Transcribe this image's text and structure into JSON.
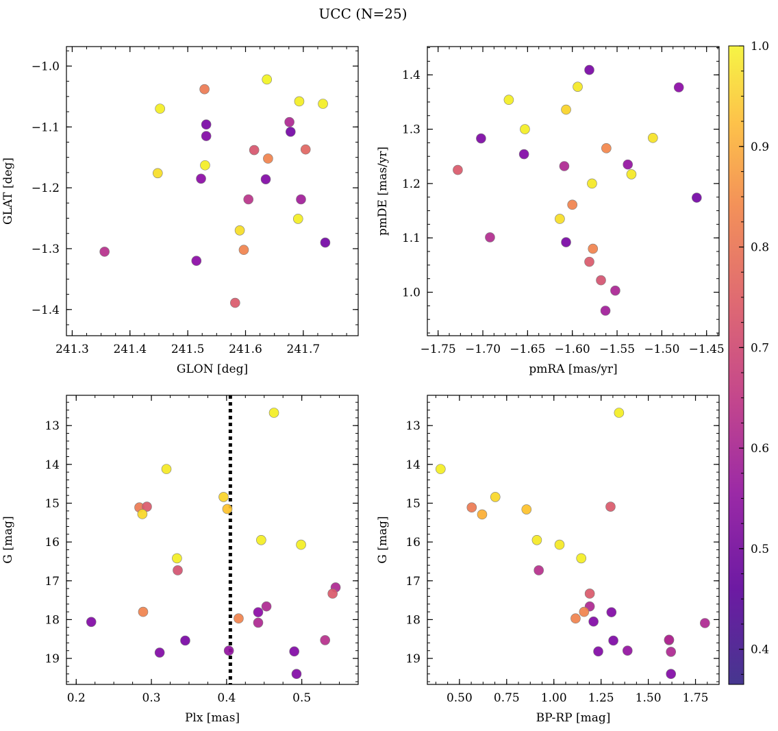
{
  "figure": {
    "title": "UCC (N=25)"
  },
  "colorbar": {
    "min": 0.365,
    "max": 1.0,
    "ticks": [
      0.4,
      0.5,
      0.6,
      0.7,
      0.8,
      0.9,
      1.0
    ],
    "tick_labels": [
      "0.4",
      "0.5",
      "0.6",
      "0.7",
      "0.8",
      "0.9",
      "1.0"
    ],
    "colormap": "plasma"
  },
  "chart_data": [
    {
      "type": "scatter",
      "id": "panel-galactic",
      "xlabel": "GLON [deg]",
      "ylabel": "GLAT [deg]",
      "xlim": [
        241.29,
        241.795
      ],
      "ylim": [
        -1.443,
        -0.968
      ],
      "xticks": [
        241.3,
        241.4,
        241.5,
        241.6,
        241.7
      ],
      "xtick_labels": [
        "241.3",
        "241.4",
        "241.5",
        "241.6",
        "241.7"
      ],
      "yticks": [
        -1.0,
        -1.1,
        -1.2,
        -1.3,
        -1.4
      ],
      "ytick_labels": [
        "−1.0",
        "−1.1",
        "−1.2",
        "−1.3",
        "−1.4"
      ],
      "x": [
        241.637,
        241.529,
        241.452,
        241.693,
        241.734,
        241.532,
        241.676,
        241.678,
        241.532,
        241.615,
        241.704,
        241.639,
        241.53,
        241.448,
        241.523,
        241.635,
        241.605,
        241.696,
        241.691,
        241.59,
        241.597,
        241.738,
        241.356,
        241.515,
        241.582
      ],
      "y": [
        -1.022,
        -1.038,
        -1.07,
        -1.058,
        -1.062,
        -1.096,
        -1.092,
        -1.108,
        -1.115,
        -1.138,
        -1.137,
        -1.152,
        -1.163,
        -1.176,
        -1.185,
        -1.186,
        -1.219,
        -1.219,
        -1.251,
        -1.27,
        -1.302,
        -1.29,
        -1.305,
        -1.32,
        -1.389
      ],
      "c": [
        0.99,
        0.74,
        0.98,
        0.98,
        0.98,
        0.41,
        0.53,
        0.4,
        0.43,
        0.65,
        0.69,
        0.76,
        0.98,
        0.95,
        0.45,
        0.43,
        0.56,
        0.5,
        0.98,
        0.95,
        0.76,
        0.4,
        0.55,
        0.45,
        0.66
      ]
    },
    {
      "type": "scatter",
      "id": "panel-pm",
      "xlabel": "pmRA [mas/yr]",
      "ylabel": "pmDE [mas/yr]",
      "xlim": [
        -1.762,
        -1.436
      ],
      "ylim": [
        0.92,
        1.452
      ],
      "xticks": [
        -1.75,
        -1.7,
        -1.65,
        -1.6,
        -1.55,
        -1.5,
        -1.45
      ],
      "xtick_labels": [
        "−1.75",
        "−1.70",
        "−1.65",
        "−1.60",
        "−1.55",
        "−1.50",
        "−1.45"
      ],
      "yticks": [
        1.0,
        1.1,
        1.2,
        1.3,
        1.4
      ],
      "ytick_labels": [
        "1.0",
        "1.1",
        "1.2",
        "1.3",
        "1.4"
      ],
      "x": [
        -1.581,
        -1.594,
        -1.481,
        -1.671,
        -1.607,
        -1.653,
        -1.702,
        -1.51,
        -1.562,
        -1.654,
        -1.538,
        -1.609,
        -1.728,
        -1.534,
        -1.578,
        -1.461,
        -1.6,
        -1.614,
        -1.692,
        -1.607,
        -1.577,
        -1.581,
        -1.568,
        -1.552,
        -1.563
      ],
      "y": [
        1.409,
        1.378,
        1.377,
        1.354,
        1.336,
        1.3,
        1.283,
        1.284,
        1.265,
        1.254,
        1.235,
        1.232,
        1.225,
        1.217,
        1.2,
        1.174,
        1.161,
        1.135,
        1.101,
        1.092,
        1.08,
        1.056,
        1.022,
        1.003,
        0.966
      ],
      "c": [
        0.41,
        0.97,
        0.45,
        0.98,
        0.93,
        0.98,
        0.42,
        0.96,
        0.77,
        0.43,
        0.47,
        0.53,
        0.66,
        0.97,
        0.97,
        0.4,
        0.76,
        0.95,
        0.54,
        0.41,
        0.76,
        0.66,
        0.64,
        0.52,
        0.5
      ]
    },
    {
      "type": "scatter",
      "id": "panel-plx",
      "xlabel": "Plx [mas]",
      "ylabel": "G [mag]",
      "xlim": [
        0.187,
        0.575
      ],
      "ylim": [
        19.67,
        12.22
      ],
      "xticks": [
        0.2,
        0.3,
        0.4,
        0.5
      ],
      "xtick_labels": [
        "0.2",
        "0.3",
        "0.4",
        "0.5"
      ],
      "yticks": [
        13,
        14,
        15,
        16,
        17,
        18,
        19
      ],
      "ytick_labels": [
        "13",
        "14",
        "15",
        "16",
        "17",
        "18",
        "19"
      ],
      "vline": 0.405,
      "x": [
        0.463,
        0.32,
        0.396,
        0.284,
        0.294,
        0.288,
        0.401,
        0.446,
        0.499,
        0.334,
        0.335,
        0.545,
        0.541,
        0.289,
        0.453,
        0.442,
        0.416,
        0.22,
        0.442,
        0.345,
        0.531,
        0.311,
        0.403,
        0.49,
        0.493
      ],
      "y": [
        12.67,
        14.12,
        14.84,
        15.11,
        15.09,
        15.28,
        15.15,
        15.95,
        16.07,
        16.42,
        16.73,
        17.17,
        17.33,
        17.8,
        17.66,
        17.81,
        17.97,
        18.06,
        18.08,
        18.54,
        18.53,
        18.85,
        18.8,
        18.82,
        19.4
      ],
      "c": [
        0.98,
        0.97,
        0.93,
        0.74,
        0.66,
        0.94,
        0.9,
        0.98,
        0.98,
        0.98,
        0.64,
        0.53,
        0.66,
        0.76,
        0.53,
        0.45,
        0.76,
        0.43,
        0.53,
        0.41,
        0.55,
        0.43,
        0.47,
        0.43,
        0.43
      ]
    },
    {
      "type": "scatter",
      "id": "panel-cmd",
      "xlabel": "BP-RP [mag]",
      "ylabel": "G [mag]",
      "xlim": [
        0.33,
        1.875
      ],
      "ylim": [
        19.67,
        12.22
      ],
      "xticks": [
        0.5,
        0.75,
        1.0,
        1.25,
        1.5,
        1.75
      ],
      "xtick_labels": [
        "0.50",
        "0.75",
        "1.00",
        "1.25",
        "1.50",
        "1.75"
      ],
      "yticks": [
        13,
        14,
        15,
        16,
        17,
        18,
        19
      ],
      "ytick_labels": [
        "13",
        "14",
        "15",
        "16",
        "17",
        "18",
        "19"
      ],
      "x": [
        1.345,
        0.4,
        0.69,
        0.565,
        0.62,
        0.855,
        1.3,
        0.91,
        1.03,
        1.145,
        0.92,
        1.19,
        1.19,
        1.16,
        1.305,
        1.115,
        1.21,
        1.8,
        1.61,
        1.315,
        1.235,
        1.39,
        1.61,
        1.62,
        1.62
      ],
      "y": [
        12.67,
        14.12,
        14.84,
        15.11,
        15.29,
        15.16,
        15.09,
        15.95,
        16.07,
        16.42,
        16.73,
        17.33,
        17.66,
        17.8,
        17.81,
        17.97,
        18.05,
        18.09,
        18.53,
        18.54,
        18.82,
        18.8,
        18.52,
        18.83,
        19.4
      ],
      "c": [
        0.98,
        0.98,
        0.94,
        0.74,
        0.86,
        0.9,
        0.66,
        0.97,
        0.97,
        0.98,
        0.55,
        0.66,
        0.53,
        0.76,
        0.43,
        0.76,
        0.43,
        0.53,
        0.55,
        0.42,
        0.43,
        0.47,
        0.53,
        0.53,
        0.43
      ]
    }
  ]
}
